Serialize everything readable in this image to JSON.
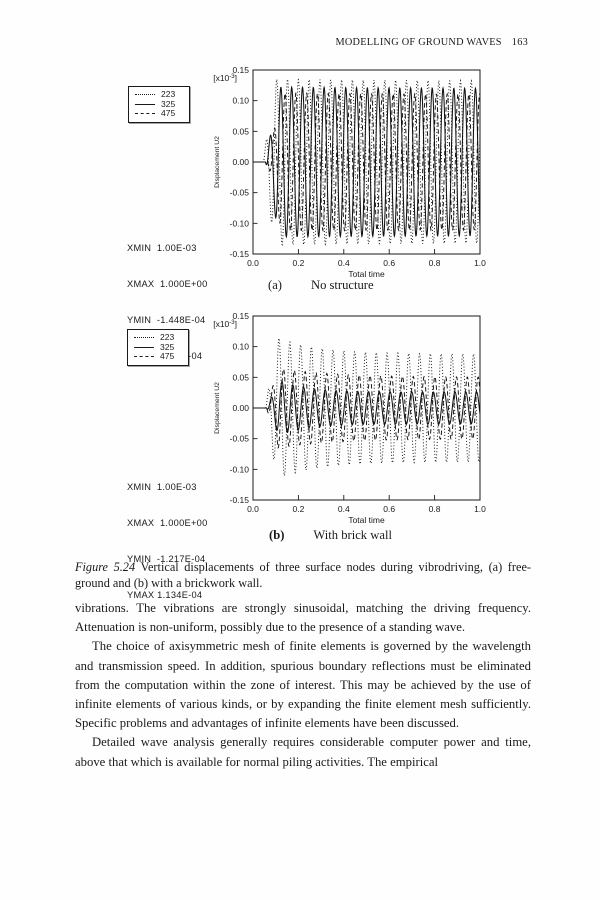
{
  "page": {
    "running_head": "MODELLING OF GROUND WAVES",
    "page_number": "163"
  },
  "chart_data": [
    {
      "id": "a",
      "type": "line",
      "sub_label": "(a)",
      "sub_title": "No structure",
      "xlabel": "Total time",
      "ylabel": "Displacement U2",
      "scale_base": "[x10",
      "scale_exp": "-3",
      "scale_close": "]",
      "xlim": [
        0.0,
        1.0
      ],
      "ylim": [
        -0.15,
        0.15
      ],
      "xticks": [
        0.0,
        0.2,
        0.4,
        0.6,
        0.8,
        1.0
      ],
      "xtick_labels": [
        "0.0",
        "0.2",
        "0.4",
        "0.6",
        "0.8",
        "1.0"
      ],
      "yticks": [
        0.15,
        0.1,
        0.05,
        0.0,
        -0.05,
        -0.1,
        -0.15
      ],
      "ytick_labels": [
        "0.15",
        "0.10",
        "0.05",
        "0.00",
        "-0.05",
        "-0.10",
        "-0.15"
      ],
      "grid": false,
      "legend_position": "outside-left",
      "legend": [
        {
          "label": "223",
          "style": "dotted"
        },
        {
          "label": "325",
          "style": "solid"
        },
        {
          "label": "475",
          "style": "dashed"
        }
      ],
      "stats": [
        "XMIN  1.00E-03",
        "XMAX  1.000E+00",
        "YMIN  -1.448E-04",
        "YMAX 1.449E-04"
      ],
      "series": [
        {
          "name": "223",
          "style": "dotted",
          "model": "damped_sine",
          "t0": 0.045,
          "ramp": 0.05,
          "amp_peak": 0.135,
          "amp_ss": 0.128,
          "tau": 2.0,
          "phase": 0.0,
          "freq": 21
        },
        {
          "name": "325",
          "style": "solid",
          "model": "damped_sine",
          "t0": 0.055,
          "ramp": 0.06,
          "amp_peak": 0.122,
          "amp_ss": 0.117,
          "tau": 2.0,
          "phase": -1.1,
          "freq": 21
        },
        {
          "name": "475",
          "style": "dashed",
          "model": "damped_sine",
          "t0": 0.065,
          "ramp": 0.06,
          "amp_peak": 0.112,
          "amp_ss": 0.108,
          "tau": 2.0,
          "phase": -2.2,
          "freq": 21
        }
      ]
    },
    {
      "id": "b",
      "type": "line",
      "sub_label": "(b)",
      "sub_title": "With brick wall",
      "xlabel": "Total time",
      "ylabel": "Displacement U2",
      "scale_base": "[x10",
      "scale_exp": "-3",
      "scale_close": "]",
      "xlim": [
        0.0,
        1.0
      ],
      "ylim": [
        -0.15,
        0.15
      ],
      "xticks": [
        0.0,
        0.2,
        0.4,
        0.6,
        0.8,
        1.0
      ],
      "xtick_labels": [
        "0.0",
        "0.2",
        "0.4",
        "0.6",
        "0.8",
        "1.0"
      ],
      "yticks": [
        0.15,
        0.1,
        0.05,
        0.0,
        -0.05,
        -0.1,
        -0.15
      ],
      "ytick_labels": [
        "0.15",
        "0.10",
        "0.05",
        "0.00",
        "-0.05",
        "-0.10",
        "-0.15"
      ],
      "grid": false,
      "legend_position": "outside-left",
      "legend": [
        {
          "label": "223",
          "style": "dotted"
        },
        {
          "label": "325",
          "style": "solid"
        },
        {
          "label": "475",
          "style": "dashed"
        }
      ],
      "stats": [
        "XMIN  1.00E-03",
        "XMAX  1.000E+00",
        "YMIN  -1.217E-04",
        "YMAX 1.134E-04"
      ],
      "series": [
        {
          "name": "223",
          "style": "dotted",
          "model": "damped_sine",
          "t0": 0.055,
          "ramp": 0.05,
          "amp_peak": 0.115,
          "amp_ss": 0.088,
          "tau": 0.18,
          "phase": 0.0,
          "freq": 21
        },
        {
          "name": "325",
          "style": "solid",
          "model": "damped_sine",
          "t0": 0.06,
          "ramp": 0.055,
          "amp_peak": 0.045,
          "amp_ss": 0.026,
          "tau": 0.12,
          "phase": -1.1,
          "freq": 21
        },
        {
          "name": "475",
          "style": "dashed",
          "model": "damped_sine",
          "t0": 0.06,
          "ramp": 0.05,
          "amp_peak": 0.065,
          "amp_ss": 0.05,
          "tau": 0.25,
          "phase": -2.0,
          "freq": 21
        }
      ]
    }
  ],
  "figure": {
    "caption_label": "Figure 5.24",
    "caption_text": " Vertical displacements of three surface nodes during vibrodriving, (a) free-ground and (b) with a brickwork wall."
  },
  "body": {
    "paragraphs": [
      "vibrations. The vibrations are strongly sinusoidal, matching the driving frequency. Attenuation is non-uniform, possibly due to the presence of a standing wave.",
      "The choice of axisymmetric mesh of finite elements is governed by the wavelength and transmission speed. In addition, spurious boundary reflections must be eliminated from the computation within the zone of interest. This may be achieved by the use of infinite elements of various kinds, or by expanding the finite element mesh sufficiently. Specific problems and advantages of infinite elements have been discussed.",
      "Detailed wave analysis generally requires considerable computer power and time, above that which is available for normal piling activities. The empirical"
    ]
  }
}
